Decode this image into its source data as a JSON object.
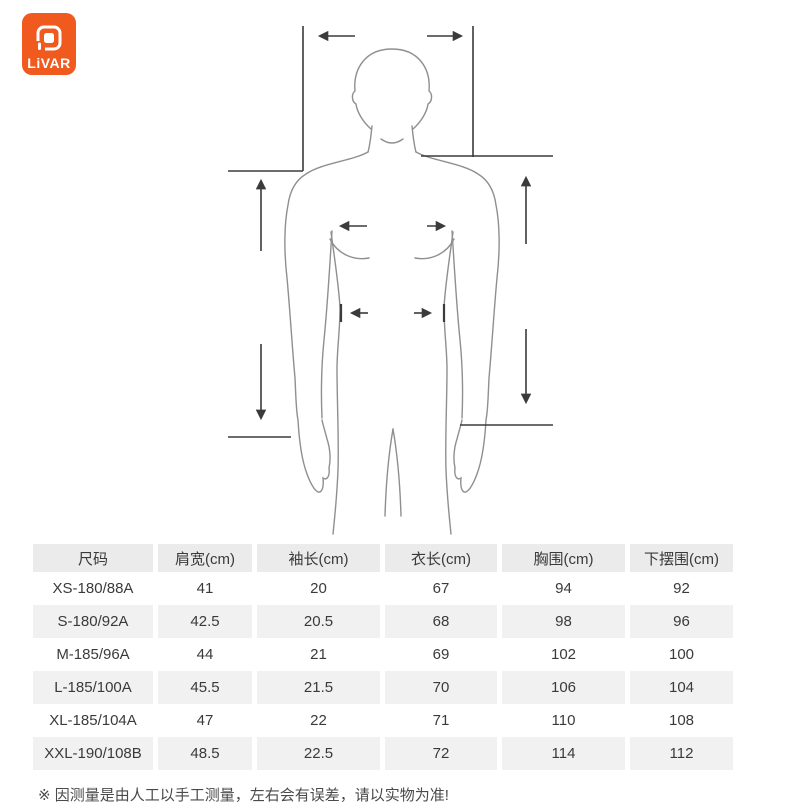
{
  "logo": {
    "text": "LiVAR",
    "icon": "livar-mark-icon",
    "bg_color": "#F05A1E"
  },
  "diagram": {
    "icon": "body-measurement-diagram",
    "colors": {
      "body_line": "#8F8F8F",
      "arrow_line": "#3B3B3B"
    }
  },
  "table": {
    "headers": [
      "尺码",
      "肩宽(cm)",
      "袖长(cm)",
      "衣长(cm)",
      "胸围(cm)",
      "下摆围(cm)"
    ],
    "rows": [
      [
        "XS-180/88A",
        "41",
        "20",
        "67",
        "94",
        "92"
      ],
      [
        "S-180/92A",
        "42.5",
        "20.5",
        "68",
        "98",
        "96"
      ],
      [
        "M-185/96A",
        "44",
        "21",
        "69",
        "102",
        "100"
      ],
      [
        "L-185/100A",
        "45.5",
        "21.5",
        "70",
        "106",
        "104"
      ],
      [
        "XL-185/104A",
        "47",
        "22",
        "71",
        "110",
        "108"
      ],
      [
        "XXL-190/108B",
        "48.5",
        "22.5",
        "72",
        "114",
        "112"
      ]
    ],
    "header_bg": "#EBEBEB",
    "alt_row_bg": "#F1F1F2",
    "text_color": "#3A3A3A"
  },
  "footnote": "※ 因测量是由人工以手工测量，左右会有误差，请以实物为准!"
}
